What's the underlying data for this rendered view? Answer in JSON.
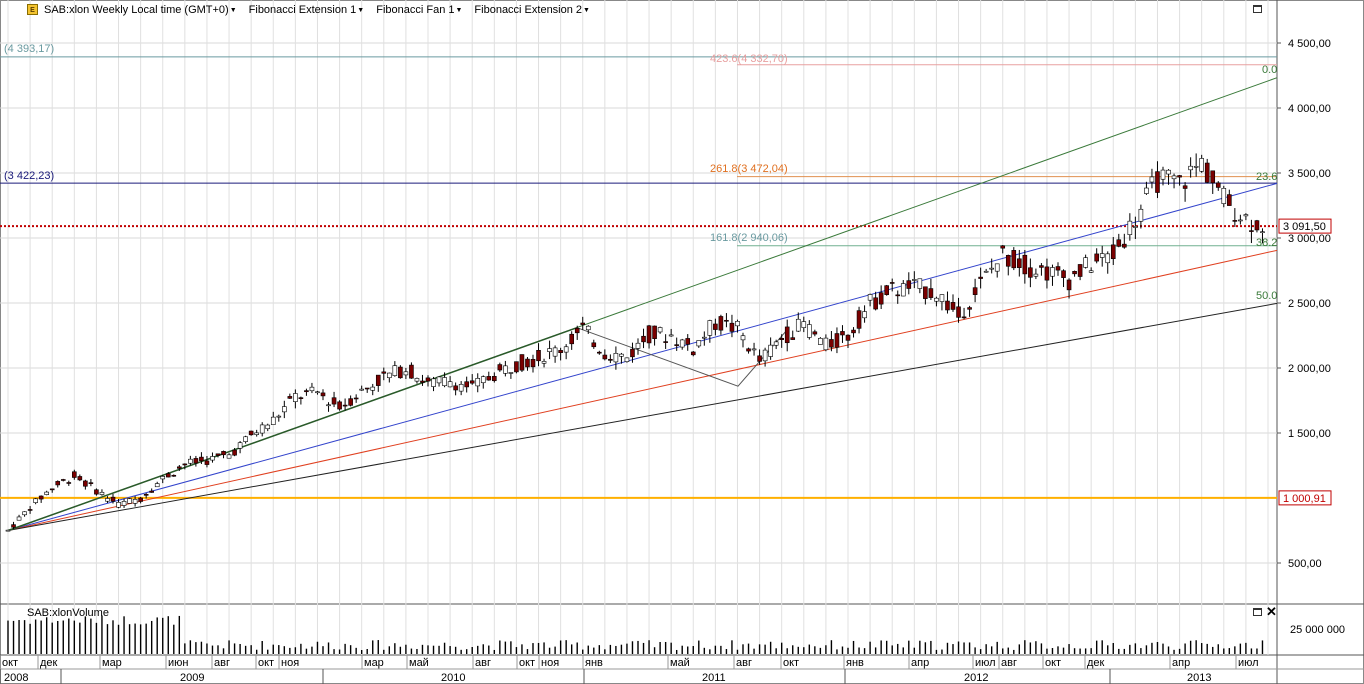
{
  "toolbar": {
    "symbol_label": "SAB:xlon Weekly Local time (GMT+0)",
    "items": [
      "Fibonacci Extension 1",
      "Fibonacci Fan 1",
      "Fibonacci Extension 2"
    ]
  },
  "price_axis": {
    "labels": [
      "4 500,00",
      "4 000,00",
      "3 500,00",
      "3 000,00",
      "2 500,00",
      "2 000,00",
      "1 500,00",
      "1 000,00",
      "500,00"
    ],
    "current_price": "3 091,50",
    "reference_price": "1 000,91"
  },
  "fib_labels": {
    "top_left": "(4 393,17)",
    "mid_left": "(3 422,23)",
    "ext_423": "423.6(4 332,70)",
    "ext_261": "261.8(3 472,04)",
    "ext_161": "161.8(2 940,06)",
    "fan_0": "0.0",
    "fan_236": "23.6",
    "fan_382": "38.2",
    "fan_50": "50.0"
  },
  "volume_panel": {
    "title": "SAB:xlonVolume",
    "axis_label": "25 000 000"
  },
  "time_axis": {
    "months": [
      "окт",
      "дек",
      "мар",
      "июн",
      "авг",
      "окт",
      "ноя",
      "мар",
      "май",
      "авг",
      "окт",
      "ноя",
      "янв",
      "май",
      "авг",
      "окт",
      "янв",
      "апр",
      "июл",
      "авг",
      "окт",
      "дек",
      "апр",
      "июл"
    ],
    "years": [
      "2008",
      "2009",
      "2010",
      "2011",
      "2012",
      "2013"
    ]
  },
  "chart_data": {
    "type": "candlestick",
    "interval": "weekly",
    "x_range": [
      "2008-10",
      "2013-07"
    ],
    "ylim": [
      0,
      4800
    ],
    "close_series": [
      {
        "date": "2008-10",
        "close": 750
      },
      {
        "date": "2008-11",
        "close": 930
      },
      {
        "date": "2008-12",
        "close": 1080
      },
      {
        "date": "2009-01",
        "close": 1170
      },
      {
        "date": "2009-02",
        "close": 1060
      },
      {
        "date": "2009-03",
        "close": 950
      },
      {
        "date": "2009-04",
        "close": 1000
      },
      {
        "date": "2009-05",
        "close": 1150
      },
      {
        "date": "2009-06",
        "close": 1260
      },
      {
        "date": "2009-07",
        "close": 1290
      },
      {
        "date": "2009-08",
        "close": 1330
      },
      {
        "date": "2009-09",
        "close": 1480
      },
      {
        "date": "2009-10",
        "close": 1600
      },
      {
        "date": "2009-11",
        "close": 1780
      },
      {
        "date": "2009-12",
        "close": 1810
      },
      {
        "date": "2010-01",
        "close": 1700
      },
      {
        "date": "2010-02",
        "close": 1820
      },
      {
        "date": "2010-03",
        "close": 1930
      },
      {
        "date": "2010-04",
        "close": 2000
      },
      {
        "date": "2010-05",
        "close": 1880
      },
      {
        "date": "2010-06",
        "close": 1900
      },
      {
        "date": "2010-07",
        "close": 1850
      },
      {
        "date": "2010-08",
        "close": 1950
      },
      {
        "date": "2010-09",
        "close": 2030
      },
      {
        "date": "2010-10",
        "close": 2080
      },
      {
        "date": "2010-11",
        "close": 2150
      },
      {
        "date": "2010-12",
        "close": 2300
      },
      {
        "date": "2011-01",
        "close": 2120
      },
      {
        "date": "2011-02",
        "close": 2080
      },
      {
        "date": "2011-03",
        "close": 2260
      },
      {
        "date": "2011-04",
        "close": 2250
      },
      {
        "date": "2011-05",
        "close": 2150
      },
      {
        "date": "2011-06",
        "close": 2350
      },
      {
        "date": "2011-07",
        "close": 2300
      },
      {
        "date": "2011-08",
        "close": 2050
      },
      {
        "date": "2011-09",
        "close": 2230
      },
      {
        "date": "2011-10",
        "close": 2340
      },
      {
        "date": "2011-11",
        "close": 2170
      },
      {
        "date": "2011-12",
        "close": 2250
      },
      {
        "date": "2012-01",
        "close": 2500
      },
      {
        "date": "2012-02",
        "close": 2600
      },
      {
        "date": "2012-03",
        "close": 2620
      },
      {
        "date": "2012-04",
        "close": 2580
      },
      {
        "date": "2012-05",
        "close": 2400
      },
      {
        "date": "2012-06",
        "close": 2650
      },
      {
        "date": "2012-07",
        "close": 2870
      },
      {
        "date": "2012-08",
        "close": 2790
      },
      {
        "date": "2012-09",
        "close": 2740
      },
      {
        "date": "2012-10",
        "close": 2680
      },
      {
        "date": "2012-11",
        "close": 2800
      },
      {
        "date": "2012-12",
        "close": 2870
      },
      {
        "date": "2013-01",
        "close": 3150
      },
      {
        "date": "2013-02",
        "close": 3450
      },
      {
        "date": "2013-03",
        "close": 3420
      },
      {
        "date": "2013-04",
        "close": 3580
      },
      {
        "date": "2013-05",
        "close": 3300
      },
      {
        "date": "2013-06",
        "close": 3150
      },
      {
        "date": "2013-07",
        "close": 3091.5
      }
    ],
    "horizontal_lines": [
      {
        "price": 3091.5,
        "style": "dotted",
        "color": "#c00000"
      },
      {
        "price": 1000.91,
        "style": "solid",
        "color": "#ffb000"
      },
      {
        "price": 3422.23,
        "style": "solid",
        "color": "#1a1a7a"
      },
      {
        "price": 4393.17,
        "style": "solid",
        "color": "#6a9aa0"
      },
      {
        "price": 4332.7,
        "style": "solid",
        "color": "#e8a0a0"
      },
      {
        "price": 3472.04,
        "style": "solid",
        "color": "#e09050"
      },
      {
        "price": 2940.06,
        "style": "solid",
        "color": "#70b090"
      }
    ],
    "colors": {
      "up_candle": "#ffffff",
      "down_candle": "#7a0000",
      "ext_orange": "#e07020",
      "fan_green": "#3a7a3a",
      "fan_blue": "#3344cc",
      "fan_red": "#e04020",
      "fan_black": "#222222"
    }
  }
}
